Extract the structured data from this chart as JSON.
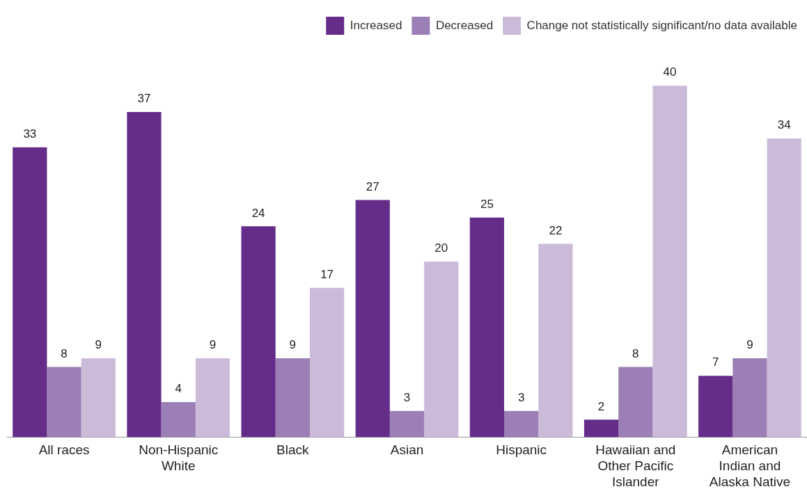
{
  "chart_data": {
    "type": "bar",
    "categories": [
      "All races",
      "Non-Hispanic White",
      "Black",
      "Asian",
      "Hispanic",
      "Hawaiian and Other Pacific Islander",
      "American Indian and Alaska Native"
    ],
    "series": [
      {
        "name": "Increased",
        "color": "#652d89",
        "values": [
          33,
          37,
          24,
          27,
          25,
          2,
          7
        ]
      },
      {
        "name": "Decreased",
        "color": "#9b7fb6",
        "values": [
          8,
          4,
          9,
          3,
          3,
          8,
          9
        ]
      },
      {
        "name": "Change not statistically significant/no data available",
        "color": "#cbbbd9",
        "values": [
          9,
          9,
          17,
          20,
          22,
          40,
          34
        ]
      }
    ],
    "tick_labels": "x",
    "data_labels": true,
    "legend": "top right",
    "grid": false
  }
}
